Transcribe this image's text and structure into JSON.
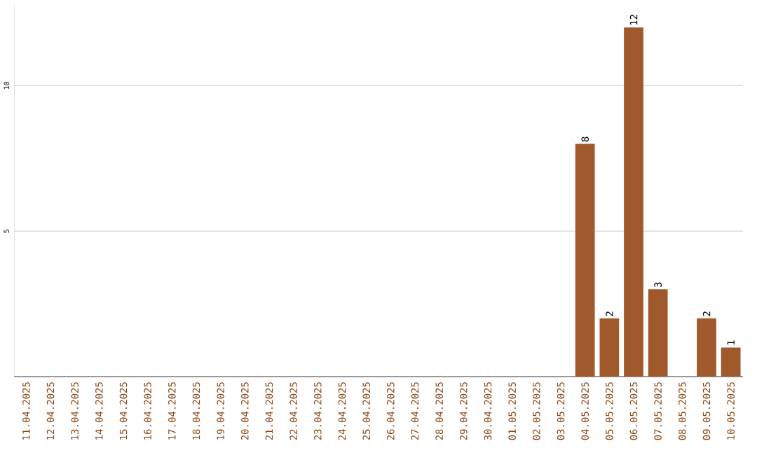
{
  "chart_data": {
    "type": "bar",
    "categories": [
      "11.04.2025",
      "12.04.2025",
      "13.04.2025",
      "14.04.2025",
      "15.04.2025",
      "16.04.2025",
      "17.04.2025",
      "18.04.2025",
      "19.04.2025",
      "20.04.2025",
      "21.04.2025",
      "22.04.2025",
      "23.04.2025",
      "24.04.2025",
      "25.04.2025",
      "26.04.2025",
      "27.04.2025",
      "28.04.2025",
      "29.04.2025",
      "30.04.2025",
      "01.05.2025",
      "02.05.2025",
      "03.05.2025",
      "04.05.2025",
      "05.05.2025",
      "06.05.2025",
      "07.05.2025",
      "08.05.2025",
      "09.05.2025",
      "10.05.2025"
    ],
    "values": [
      0,
      0,
      0,
      0,
      0,
      0,
      0,
      0,
      0,
      0,
      0,
      0,
      0,
      0,
      0,
      0,
      0,
      0,
      0,
      0,
      0,
      0,
      0,
      8,
      2,
      12,
      3,
      0,
      2,
      1
    ],
    "value_labels": [
      null,
      null,
      null,
      null,
      null,
      null,
      null,
      null,
      null,
      null,
      null,
      null,
      null,
      null,
      null,
      null,
      null,
      null,
      null,
      null,
      null,
      null,
      null,
      "8",
      "2",
      "12",
      "3",
      null,
      "2",
      "1"
    ],
    "color": "#a0592a",
    "ylim": [
      0,
      12.8
    ],
    "yticks": [
      5,
      10
    ],
    "grid": "y"
  }
}
